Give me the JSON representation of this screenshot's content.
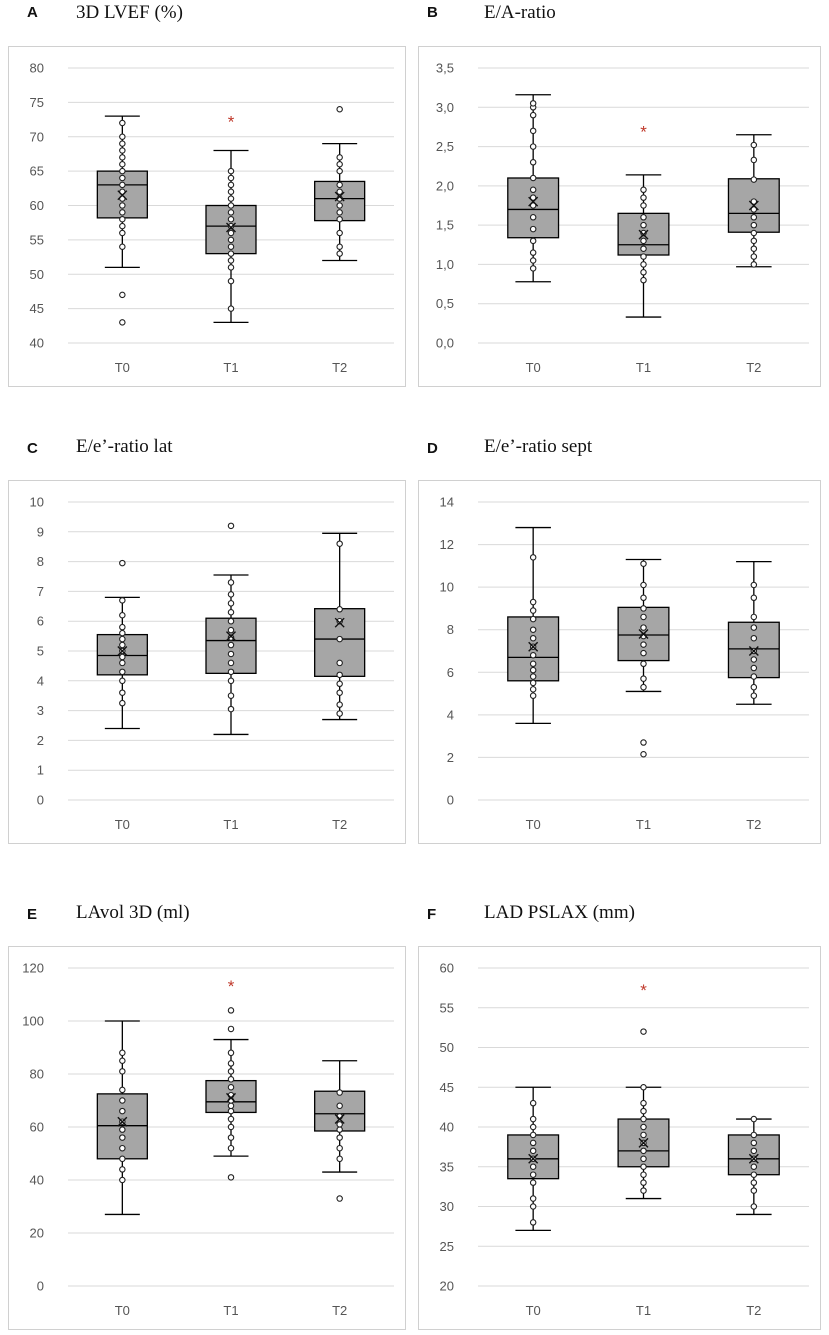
{
  "figure": {
    "colors": {
      "box_fill": "#a6a6a6",
      "grid": "#d9d9d9",
      "frame": "#d0d0d0",
      "outline": "#000000",
      "star": "#c0392b"
    }
  },
  "chart_data": [
    {
      "panel": "A",
      "title": "3D LVEF (%)",
      "type": "box",
      "categories": [
        "T0",
        "T1",
        "T2"
      ],
      "ylim": [
        40,
        80
      ],
      "yticks": [
        40,
        45,
        50,
        55,
        60,
        65,
        70,
        75,
        80
      ],
      "decimals": 0,
      "boxes": [
        {
          "min": 51,
          "q1": 58.2,
          "median": 63,
          "q3": 65,
          "max": 73,
          "mean": 61.5,
          "points": [
            43,
            47,
            54,
            56,
            57,
            58,
            59,
            60,
            61,
            62,
            63,
            64,
            65,
            66,
            67,
            68,
            69,
            70,
            72
          ]
        },
        {
          "min": 43,
          "q1": 53,
          "median": 57,
          "q3": 60,
          "max": 68,
          "mean": 56.8,
          "points": [
            45,
            49,
            51,
            52,
            53,
            54,
            55,
            56,
            57,
            58,
            59,
            60,
            61,
            62,
            63,
            64,
            65
          ]
        },
        {
          "min": 52,
          "q1": 57.8,
          "median": 61,
          "q3": 63.5,
          "max": 69,
          "mean": 61.3,
          "points": [
            53,
            54,
            56,
            58,
            59,
            60,
            61,
            62,
            63,
            65,
            66,
            67,
            74
          ]
        }
      ],
      "annotations": [
        {
          "category": "T1",
          "text": "*",
          "y": 72.5
        }
      ]
    },
    {
      "panel": "B",
      "title": "E/A-ratio",
      "type": "box",
      "categories": [
        "T0",
        "T1",
        "T2"
      ],
      "ylim": [
        0,
        3.5
      ],
      "yticks": [
        0,
        0.5,
        1.0,
        1.5,
        2.0,
        2.5,
        3.0,
        3.5
      ],
      "decimals": 1,
      "boxes": [
        {
          "min": 0.78,
          "q1": 1.34,
          "median": 1.7,
          "q3": 2.1,
          "max": 3.16,
          "mean": 1.8,
          "points": [
            0.95,
            1.05,
            1.15,
            1.3,
            1.45,
            1.6,
            1.75,
            1.85,
            1.95,
            2.1,
            2.3,
            2.5,
            2.7,
            2.9,
            3.0,
            3.05
          ]
        },
        {
          "min": 0.33,
          "q1": 1.12,
          "median": 1.25,
          "q3": 1.65,
          "max": 2.14,
          "mean": 1.38,
          "points": [
            0.8,
            0.9,
            1.0,
            1.1,
            1.2,
            1.3,
            1.4,
            1.5,
            1.6,
            1.75,
            1.85,
            1.95
          ]
        },
        {
          "min": 0.97,
          "q1": 1.41,
          "median": 1.65,
          "q3": 2.09,
          "max": 2.65,
          "mean": 1.75,
          "points": [
            1.0,
            1.1,
            1.2,
            1.3,
            1.4,
            1.5,
            1.6,
            1.7,
            1.8,
            2.08,
            2.33,
            2.52
          ]
        }
      ],
      "annotations": [
        {
          "category": "T1",
          "text": "*",
          "y": 2.72
        }
      ]
    },
    {
      "panel": "C",
      "title": "E/e’-ratio lat",
      "type": "box",
      "categories": [
        "T0",
        "T1",
        "T2"
      ],
      "ylim": [
        0,
        10
      ],
      "yticks": [
        0,
        1,
        2,
        3,
        4,
        5,
        6,
        7,
        8,
        9,
        10
      ],
      "decimals": 0,
      "boxes": [
        {
          "min": 2.4,
          "q1": 4.2,
          "median": 4.85,
          "q3": 5.55,
          "max": 6.8,
          "mean": 5.0,
          "points": [
            3.25,
            3.6,
            4.0,
            4.3,
            4.6,
            4.8,
            5.0,
            5.2,
            5.4,
            5.6,
            5.8,
            6.2,
            6.7,
            7.95
          ]
        },
        {
          "min": 2.2,
          "q1": 4.25,
          "median": 5.35,
          "q3": 6.1,
          "max": 7.55,
          "mean": 5.5,
          "points": [
            3.05,
            3.5,
            4.0,
            4.3,
            4.6,
            4.9,
            5.2,
            5.45,
            5.7,
            6.0,
            6.3,
            6.6,
            6.9,
            7.3,
            9.2
          ]
        },
        {
          "min": 2.7,
          "q1": 4.15,
          "median": 5.4,
          "q3": 6.42,
          "max": 8.95,
          "mean": 5.95,
          "points": [
            2.9,
            3.2,
            3.6,
            3.9,
            4.2,
            4.6,
            5.4,
            6.0,
            6.4,
            8.6
          ]
        }
      ],
      "annotations": []
    },
    {
      "panel": "D",
      "title": "E/e’-ratio sept",
      "type": "box",
      "categories": [
        "T0",
        "T1",
        "T2"
      ],
      "ylim": [
        0,
        14
      ],
      "yticks": [
        0,
        2,
        4,
        6,
        8,
        10,
        12,
        14
      ],
      "decimals": 0,
      "boxes": [
        {
          "min": 3.6,
          "q1": 5.6,
          "median": 6.7,
          "q3": 8.6,
          "max": 12.8,
          "mean": 7.2,
          "points": [
            4.9,
            5.2,
            5.5,
            5.8,
            6.1,
            6.4,
            6.8,
            7.2,
            7.6,
            8.0,
            8.5,
            8.9,
            9.3,
            11.4
          ]
        },
        {
          "min": 5.1,
          "q1": 6.55,
          "median": 7.75,
          "q3": 9.05,
          "max": 11.3,
          "mean": 7.8,
          "points": [
            2.15,
            2.7,
            5.3,
            5.7,
            6.4,
            6.9,
            7.3,
            7.7,
            8.1,
            8.6,
            9.0,
            9.5,
            10.1,
            11.1
          ]
        },
        {
          "min": 4.5,
          "q1": 5.75,
          "median": 7.1,
          "q3": 8.35,
          "max": 11.2,
          "mean": 7.0,
          "points": [
            4.9,
            5.3,
            5.8,
            6.2,
            6.6,
            7.0,
            7.6,
            8.1,
            8.6,
            9.5,
            10.1
          ]
        }
      ],
      "annotations": []
    },
    {
      "panel": "E",
      "title": "LAvol 3D (ml)",
      "type": "box",
      "categories": [
        "T0",
        "T1",
        "T2"
      ],
      "ylim": [
        0,
        120
      ],
      "yticks": [
        0,
        20,
        40,
        60,
        80,
        100,
        120
      ],
      "decimals": 0,
      "boxes": [
        {
          "min": 27,
          "q1": 48,
          "median": 60.5,
          "q3": 72.5,
          "max": 100,
          "mean": 62,
          "points": [
            40,
            44,
            48,
            52,
            56,
            59,
            62,
            66,
            70,
            74,
            81,
            85,
            88
          ]
        },
        {
          "min": 49,
          "q1": 65.5,
          "median": 69.5,
          "q3": 77.5,
          "max": 93,
          "mean": 71,
          "points": [
            41,
            52,
            56,
            60,
            63,
            66,
            68,
            70,
            72,
            75,
            78,
            81,
            84,
            88,
            97,
            104
          ]
        },
        {
          "min": 43,
          "q1": 58.5,
          "median": 65,
          "q3": 73.5,
          "max": 85,
          "mean": 63,
          "points": [
            33,
            48,
            52,
            56,
            59,
            61,
            64,
            68,
            73
          ]
        }
      ],
      "annotations": [
        {
          "category": "T1",
          "text": "*",
          "y": 114
        }
      ]
    },
    {
      "panel": "F",
      "title": "LAD PSLAX (mm)",
      "type": "box",
      "categories": [
        "T0",
        "T1",
        "T2"
      ],
      "ylim": [
        20,
        60
      ],
      "yticks": [
        20,
        25,
        30,
        35,
        40,
        45,
        50,
        55,
        60
      ],
      "decimals": 0,
      "boxes": [
        {
          "min": 27,
          "q1": 33.5,
          "median": 36,
          "q3": 39,
          "max": 45,
          "mean": 36,
          "points": [
            28,
            30,
            31,
            33,
            34,
            35,
            36,
            37,
            38,
            39,
            40,
            41,
            43
          ]
        },
        {
          "min": 31,
          "q1": 35,
          "median": 37,
          "q3": 41,
          "max": 45,
          "mean": 38,
          "points": [
            32,
            33,
            34,
            35,
            36,
            37,
            38,
            39,
            40,
            41,
            42,
            43,
            45,
            52
          ]
        },
        {
          "min": 29,
          "q1": 34,
          "median": 36,
          "q3": 39,
          "max": 41,
          "mean": 36,
          "points": [
            30,
            32,
            33,
            34,
            35,
            36,
            37,
            38,
            39,
            41
          ]
        }
      ],
      "annotations": [
        {
          "category": "T1",
          "text": "*",
          "y": 57.5
        }
      ]
    }
  ]
}
